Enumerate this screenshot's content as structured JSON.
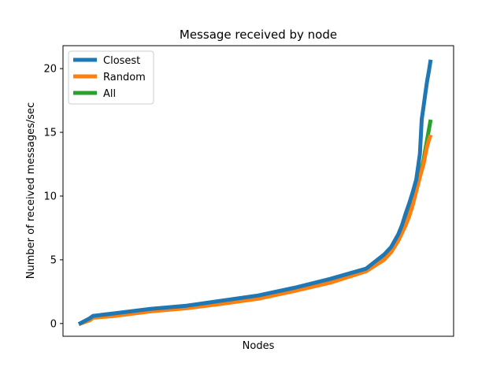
{
  "chart_data": {
    "type": "line",
    "title": "Message received by node",
    "xlabel": "Nodes",
    "ylabel": "Number of received messages/sec",
    "xlim": [
      0,
      100
    ],
    "ylim": [
      -1,
      21.8
    ],
    "yticks": [
      0,
      5,
      10,
      15,
      20
    ],
    "xticks": [],
    "grid": false,
    "legend_position": "top-left",
    "series": [
      {
        "name": "Closest",
        "color": "#1f77b4",
        "x": [
          0,
          3,
          4,
          10,
          20,
          30,
          40,
          50,
          60,
          70,
          75,
          80,
          85,
          87,
          89,
          90,
          91,
          92,
          93,
          94,
          95,
          95.5,
          96,
          96.5,
          97,
          97.5,
          98
        ],
        "y": [
          -0.05,
          0.4,
          0.6,
          0.8,
          1.15,
          1.4,
          1.8,
          2.2,
          2.8,
          3.5,
          3.9,
          4.3,
          5.4,
          6.0,
          7.0,
          7.7,
          8.6,
          9.4,
          10.3,
          11.3,
          13.3,
          16.0,
          17.0,
          18.0,
          19.0,
          19.8,
          20.7
        ]
      },
      {
        "name": "Random",
        "color": "#ff7f0e",
        "x": [
          0,
          3,
          4,
          10,
          20,
          30,
          40,
          50,
          60,
          70,
          75,
          80,
          85,
          87,
          89,
          91,
          92,
          93,
          94,
          95,
          96,
          96.5,
          97,
          97.5,
          98
        ],
        "y": [
          -0.05,
          0.25,
          0.45,
          0.6,
          0.95,
          1.2,
          1.55,
          1.95,
          2.55,
          3.2,
          3.65,
          4.1,
          5.0,
          5.6,
          6.5,
          7.7,
          8.4,
          9.3,
          10.4,
          11.5,
          12.5,
          13.2,
          13.9,
          14.4,
          14.8
        ]
      },
      {
        "name": "All",
        "color": "#2ca02c",
        "x": [
          0,
          3,
          4,
          10,
          20,
          30,
          40,
          50,
          60,
          70,
          75,
          80,
          85,
          87,
          89,
          91,
          92,
          93,
          94,
          95,
          96,
          96.5,
          97,
          97.5,
          98
        ],
        "y": [
          -0.05,
          0.3,
          0.5,
          0.65,
          1.0,
          1.25,
          1.6,
          2.0,
          2.6,
          3.3,
          3.7,
          4.15,
          5.1,
          5.7,
          6.6,
          7.8,
          8.5,
          9.4,
          10.5,
          11.6,
          12.8,
          13.6,
          14.4,
          15.2,
          16.0
        ]
      }
    ]
  }
}
